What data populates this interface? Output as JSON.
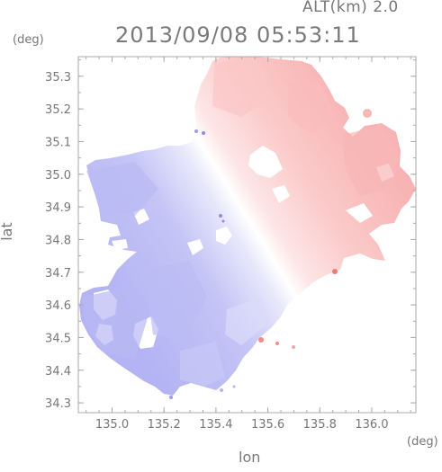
{
  "header": {
    "altitude": "ALT(km) 2.0",
    "timestamp": "2013/09/08 05:53:11"
  },
  "axes": {
    "y_unit": "(deg)",
    "x_unit": "(deg)",
    "xlabel": "lon",
    "ylabel": "lat"
  },
  "chart_data": {
    "type": "heatmap",
    "xlabel": "lon",
    "ylabel": "lat",
    "x_range": [
      134.87,
      136.17
    ],
    "y_range": [
      34.27,
      35.36
    ],
    "x_ticks": [
      135.0,
      135.2,
      135.4,
      135.6,
      135.8,
      136.0
    ],
    "x_tick_labels": [
      "135.0",
      "135.2",
      "135.4",
      "135.6",
      "135.8",
      "136.0"
    ],
    "y_ticks": [
      34.3,
      34.4,
      34.5,
      34.6,
      34.7,
      34.8,
      34.9,
      35.0,
      35.1,
      35.2,
      35.3
    ],
    "y_tick_labels": [
      "34.3",
      "34.4",
      "34.5",
      "34.6",
      "34.7",
      "34.8",
      "34.9",
      "35.0",
      "35.1",
      "35.2",
      "35.3"
    ],
    "colors": {
      "negative": "#b4b4f4",
      "positive": "#f9b8b8",
      "neutral": "#ffffff",
      "frame": "#aaaaaa",
      "tick_text": "#777777"
    }
  }
}
